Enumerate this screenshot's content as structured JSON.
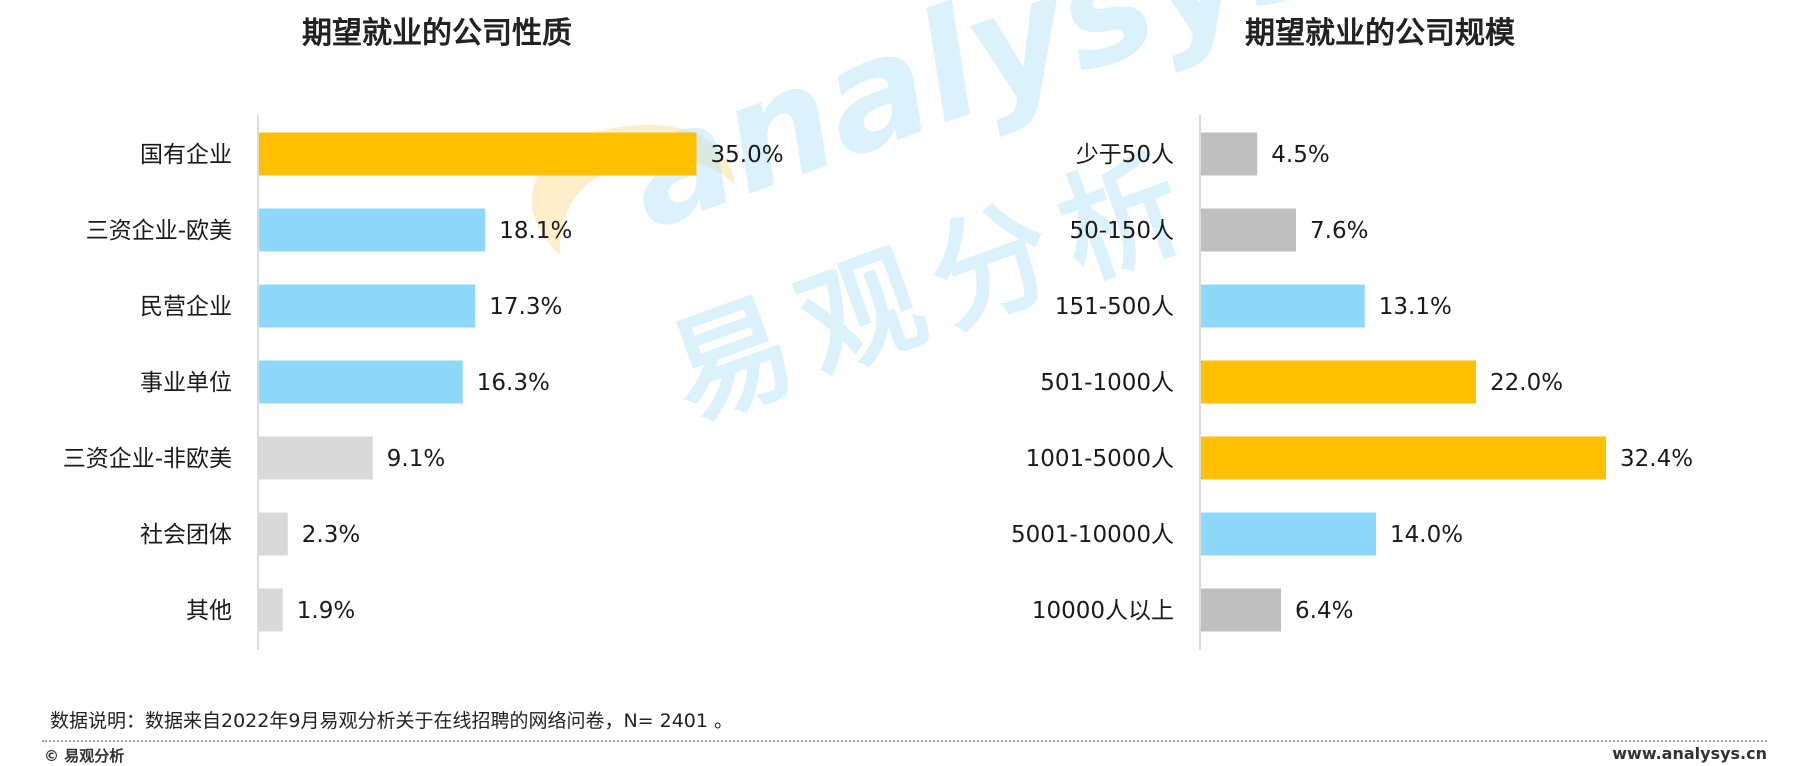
{
  "colors": {
    "highlight": "#FFC000",
    "blue": "#8ED9FB",
    "gray_light": "#D9D9D9",
    "gray_mid": "#BFBFBF",
    "axis": "#D0D0D0"
  },
  "chart_data": [
    {
      "type": "bar",
      "orientation": "horizontal",
      "title": "期望就业的公司性质",
      "categories": [
        "国有企业",
        "三资企业-欧美",
        "民营企业",
        "事业单位",
        "三资企业-非欧美",
        "社会团体",
        "其他"
      ],
      "values": [
        35.0,
        18.1,
        17.3,
        16.3,
        9.1,
        2.3,
        1.9
      ],
      "labels": [
        "35.0%",
        "18.1%",
        "17.3%",
        "16.3%",
        "9.1%",
        "2.3%",
        "1.9%"
      ],
      "bar_colors": [
        "#FFC000",
        "#8ED9FB",
        "#8ED9FB",
        "#8ED9FB",
        "#D9D9D9",
        "#D9D9D9",
        "#D9D9D9"
      ],
      "unit": "%",
      "xlim": [
        0,
        40
      ],
      "grid": false,
      "legend": "none"
    },
    {
      "type": "bar",
      "orientation": "horizontal",
      "title": "期望就业的公司规模",
      "categories": [
        "少于50人",
        "50-150人",
        "151-500人",
        "501-1000人",
        "1001-5000人",
        "5001-10000人",
        "10000人以上"
      ],
      "values": [
        4.5,
        7.6,
        13.1,
        22.0,
        32.4,
        14.0,
        6.4
      ],
      "labels": [
        "4.5%",
        "7.6%",
        "13.1%",
        "22.0%",
        "32.4%",
        "14.0%",
        "6.4%"
      ],
      "bar_colors": [
        "#BFBFBF",
        "#BFBFBF",
        "#8ED9FB",
        "#FFC000",
        "#FFC000",
        "#8ED9FB",
        "#BFBFBF"
      ],
      "unit": "%",
      "xlim": [
        0,
        40
      ],
      "grid": false,
      "legend": "none"
    }
  ],
  "watermark": {
    "latin": "analysys",
    "cjk": "易观分析"
  },
  "note": "数据说明：数据来自2022年9月易观分析关于在线招聘的网络问卷，N= 2401 。",
  "footer": {
    "left": "© 易观分析",
    "right": "www.analysys.cn"
  }
}
